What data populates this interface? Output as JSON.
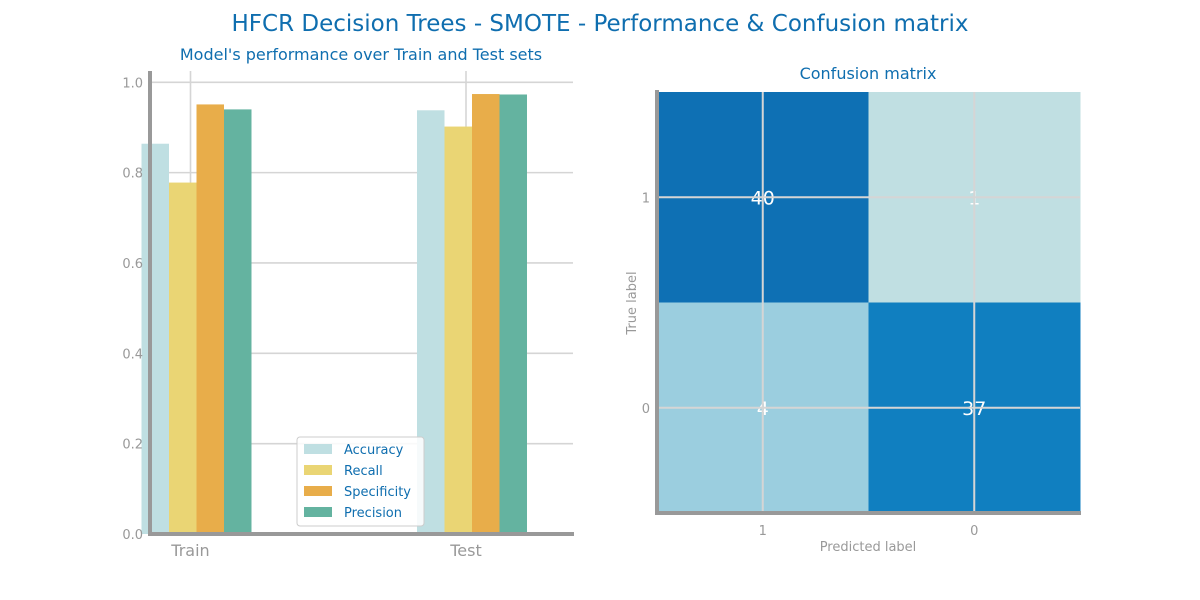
{
  "figure": {
    "title": "HFCR Decision Trees - SMOTE - Performance & Confusion matrix"
  },
  "colors": {
    "title": "#0f6eaf",
    "tick": "#999999",
    "spine": "#999999",
    "grid": "#d5d5d5",
    "cell_text": "#ffffff"
  },
  "chart_data": [
    {
      "type": "bar",
      "title": "Model's performance over Train and Test sets",
      "xlabel": "",
      "ylabel": "",
      "categories": [
        "Train",
        "Test"
      ],
      "ylim": [
        0,
        1.025
      ],
      "yticks": [
        0.0,
        0.2,
        0.4,
        0.6,
        0.8,
        1.0
      ],
      "ytick_labels": [
        "0.0",
        "0.2",
        "0.4",
        "0.6",
        "0.8",
        "1.0"
      ],
      "grid": true,
      "legend": "bottom-center",
      "series": [
        {
          "name": "Accuracy",
          "color": "#bfdfe2",
          "values": [
            0.864,
            0.938
          ]
        },
        {
          "name": "Recall",
          "color": "#ead574",
          "values": [
            0.778,
            0.902
          ]
        },
        {
          "name": "Specificity",
          "color": "#e8ad4a",
          "values": [
            0.951,
            0.974
          ]
        },
        {
          "name": "Precision",
          "color": "#64b3a0",
          "values": [
            0.94,
            0.973
          ]
        }
      ]
    },
    {
      "type": "heatmap",
      "title": "Confusion matrix",
      "xlabel": "Predicted label",
      "ylabel": "True label",
      "x_categories": [
        "1",
        "0"
      ],
      "y_categories": [
        "1",
        "0"
      ],
      "grid": true,
      "values": [
        [
          40,
          1
        ],
        [
          4,
          37
        ]
      ],
      "labels": [
        [
          "40",
          "1"
        ],
        [
          "4",
          "37"
        ]
      ],
      "colors": [
        [
          "#0e70b4",
          "#c0dfe2"
        ],
        [
          "#9bcedf",
          "#107fc0"
        ]
      ]
    }
  ]
}
